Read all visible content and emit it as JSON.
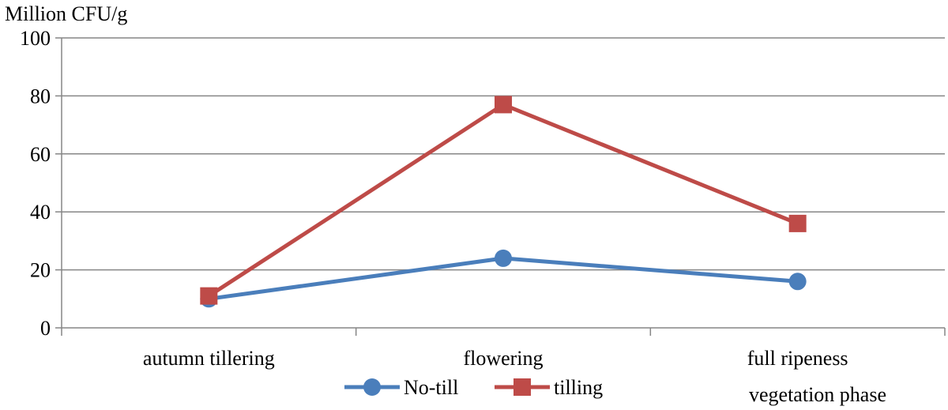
{
  "chart_data": {
    "type": "line",
    "ylabel": "Million CFU/g",
    "xlabel": "vegetation phase",
    "categories": [
      "autumn tillering",
      "flowering",
      "full ripeness"
    ],
    "ylim": [
      0,
      100
    ],
    "yticks": [
      0,
      20,
      40,
      60,
      80,
      100
    ],
    "grid": true,
    "legend_position": "bottom",
    "series": [
      {
        "name": "No-till",
        "values": [
          10,
          24,
          16
        ],
        "color": "#4a7ebb",
        "marker": "circle"
      },
      {
        "name": "tilling",
        "values": [
          11,
          77,
          36
        ],
        "color": "#be4b48",
        "marker": "square"
      }
    ]
  }
}
